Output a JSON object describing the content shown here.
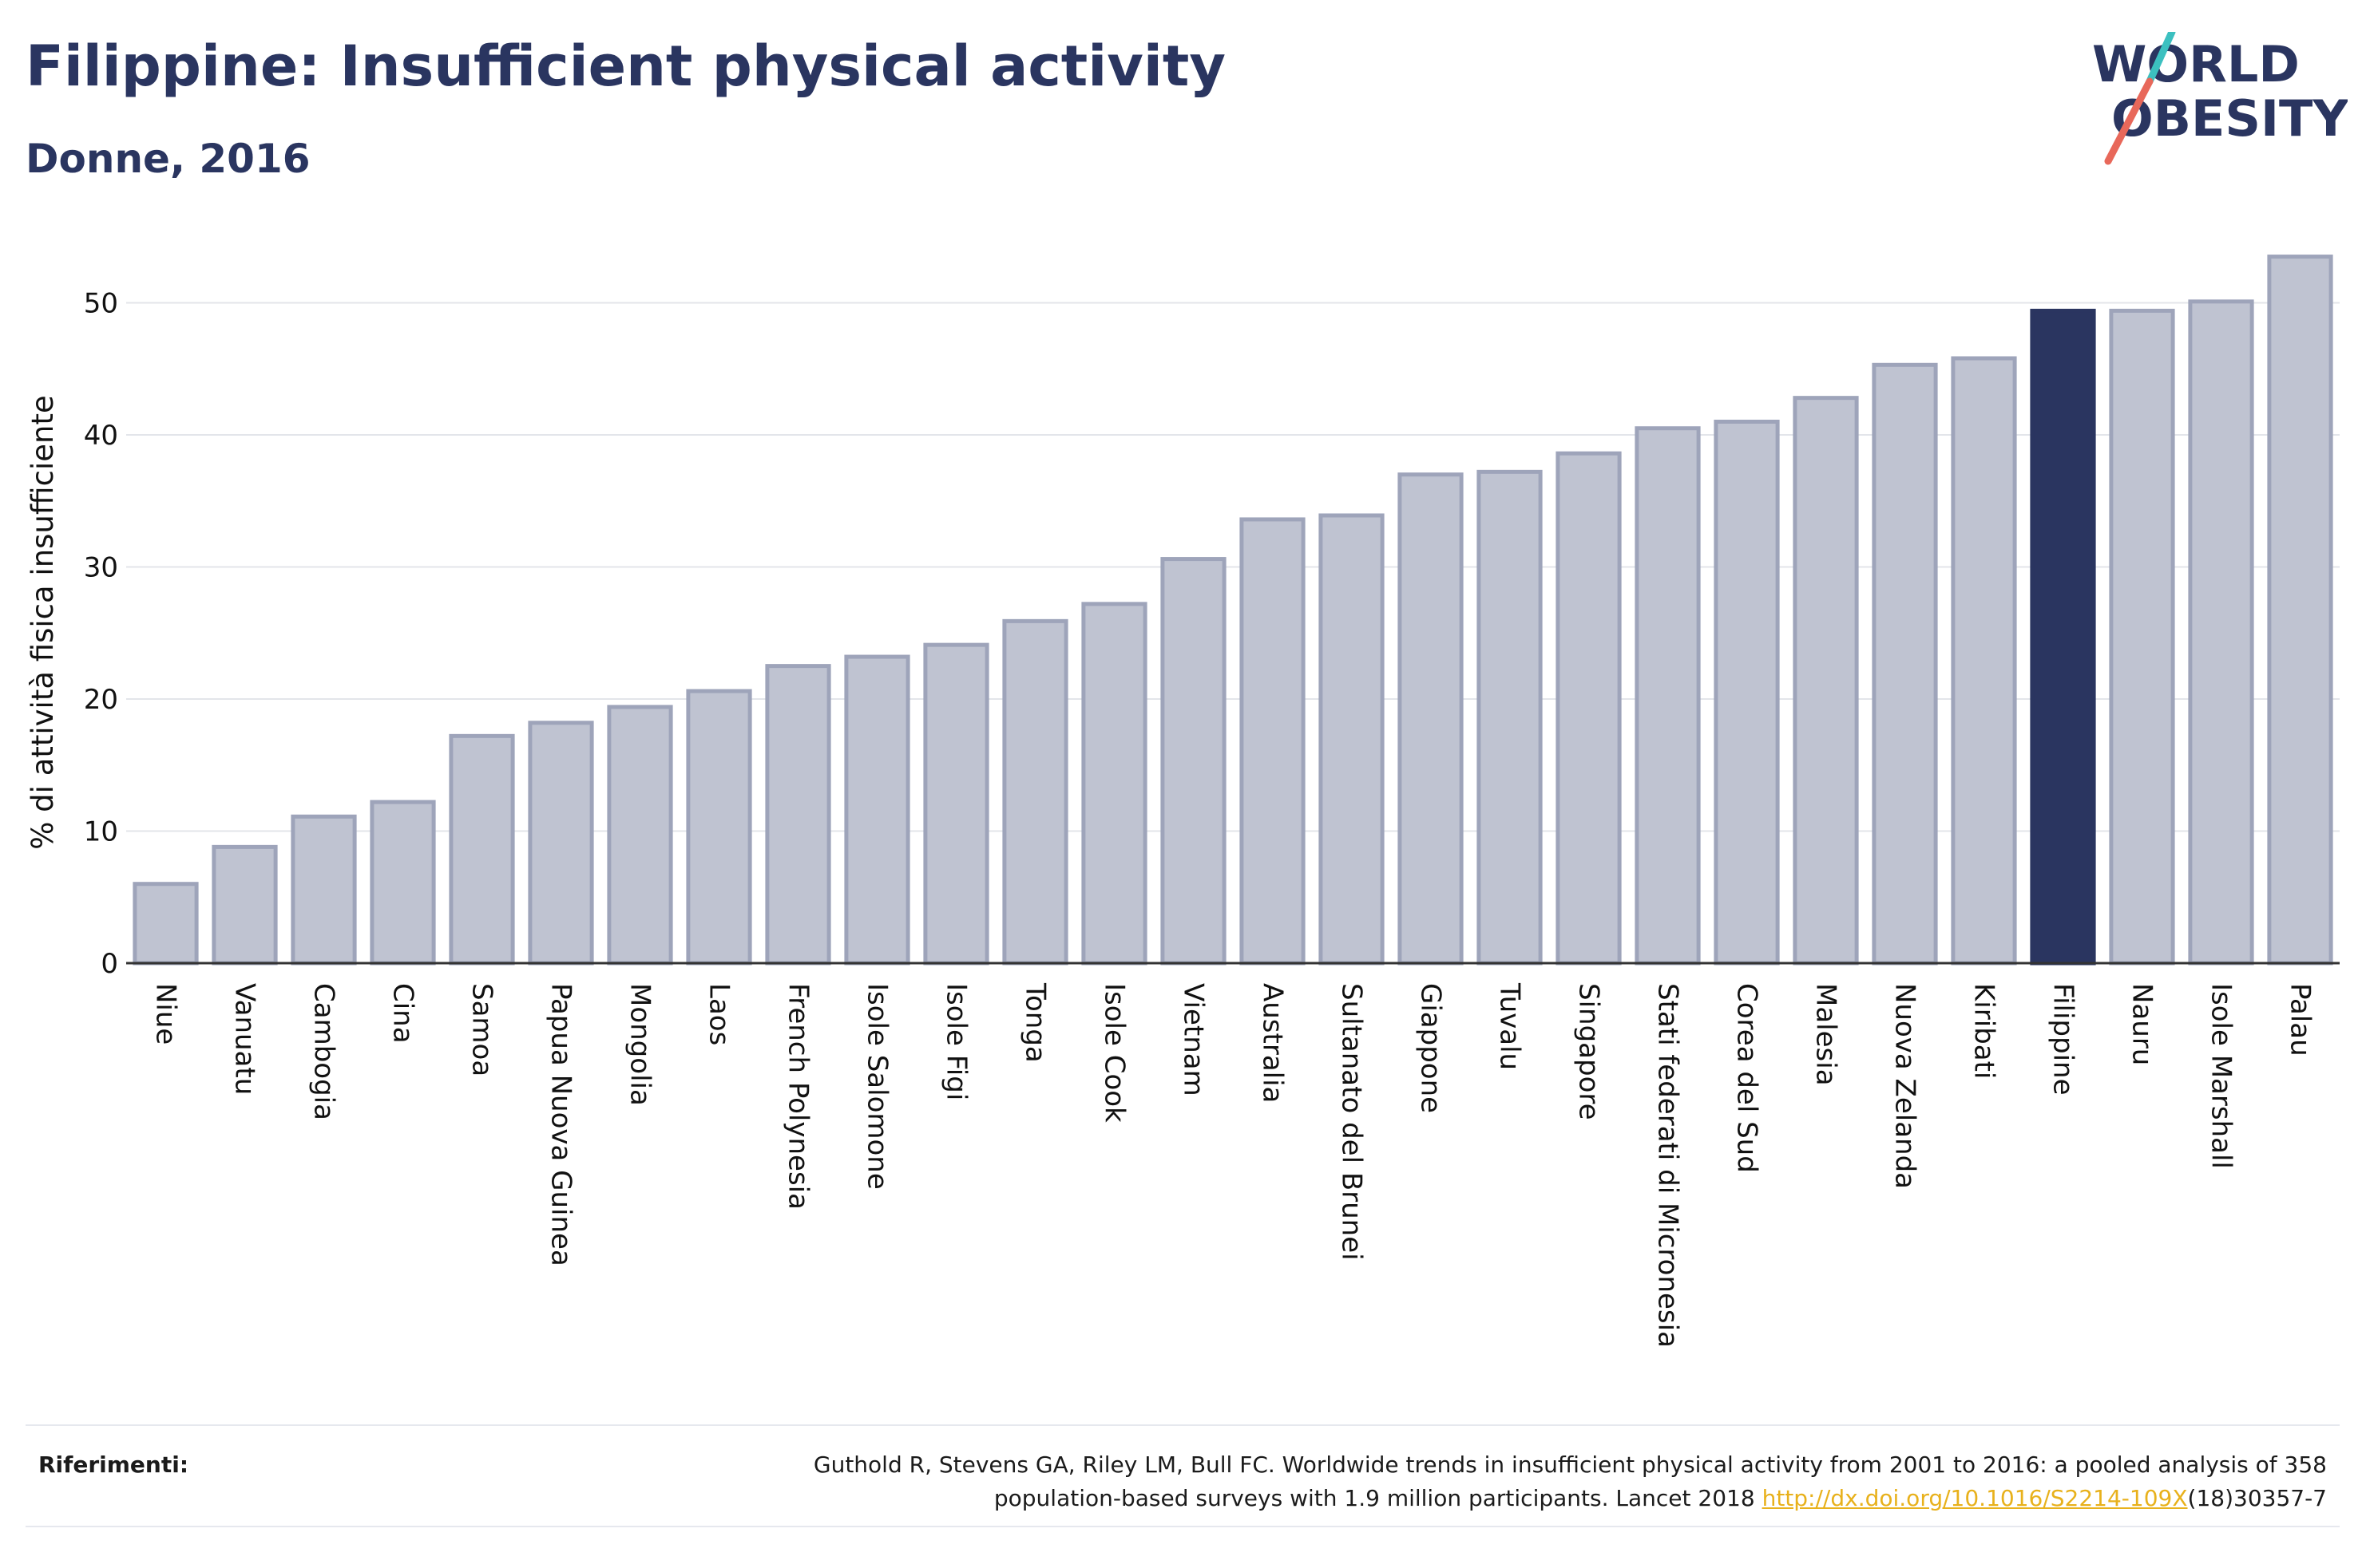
{
  "header": {
    "title": "Filippine: Insufficient physical activity",
    "subtitle": "Donne, 2016"
  },
  "logo": {
    "line1": "WORLD",
    "line2": "OBESITY"
  },
  "colors": {
    "primary": "#2a3560",
    "bar_fill": "#bfc3d1",
    "bar_stroke": "#9ea4ba",
    "highlight": "#2a3560",
    "link": "#e8b11c",
    "logo_teal": "#3cc0c0",
    "logo_coral": "#e8685a"
  },
  "chart_data": {
    "type": "bar",
    "title": "Filippine: Insufficient physical activity",
    "subtitle": "Donne, 2016",
    "xlabel": "",
    "ylabel": "% di attività fisica insufficiente",
    "ylim": [
      0,
      55
    ],
    "yticks": [
      0,
      10,
      20,
      30,
      40,
      50
    ],
    "grid": true,
    "highlight_category": "Filippine",
    "categories": [
      "Niue",
      "Vanuatu",
      "Cambogia",
      "Cina",
      "Samoa",
      "Papua Nuova Guinea",
      "Mongolia",
      "Laos",
      "French Polynesia",
      "Isole Salomone",
      "Isole Figi",
      "Tonga",
      "Isole Cook",
      "Vietnam",
      "Australia",
      "Sultanato del Brunei",
      "Giappone",
      "Tuvalu",
      "Singapore",
      "Stati federati di Micronesia",
      "Corea del Sud",
      "Malesia",
      "Nuova Zelanda",
      "Kiribati",
      "Filippine",
      "Nauru",
      "Isole Marshall",
      "Palau"
    ],
    "values": [
      6.0,
      8.8,
      11.1,
      12.2,
      17.2,
      18.2,
      19.4,
      20.6,
      22.5,
      23.2,
      24.1,
      25.9,
      27.2,
      30.6,
      33.6,
      33.9,
      37.0,
      37.2,
      38.6,
      40.5,
      41.0,
      42.8,
      45.3,
      45.8,
      49.4,
      49.4,
      50.1,
      53.5
    ]
  },
  "references": {
    "label": "Riferimenti:",
    "line1": "Guthold R, Stevens GA, Riley LM, Bull FC. Worldwide trends in insufficient physical activity from 2001 to 2016: a pooled analysis of 358",
    "line2_prefix": "population-based surveys with 1.9 million participants. Lancet 2018 ",
    "link_text": "http://dx.doi.org/10.1016/S2214-109X",
    "line2_suffix": "(18)30357-7"
  }
}
